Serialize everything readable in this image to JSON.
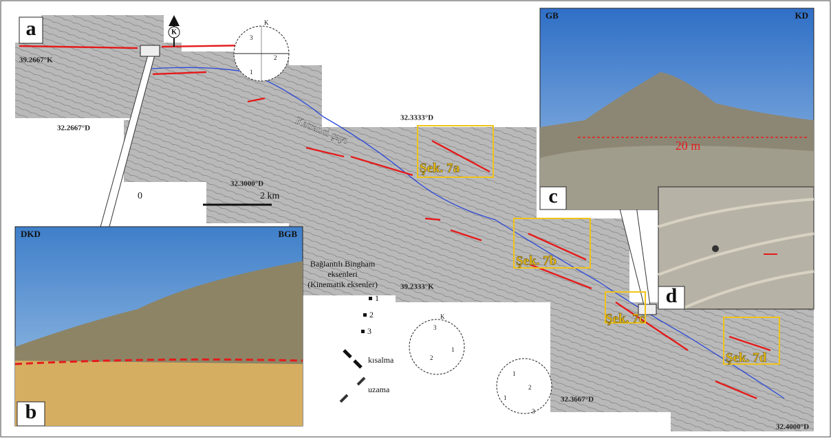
{
  "panel_labels": [
    "a",
    "b",
    "c",
    "d"
  ],
  "north_label": "K",
  "coordinates": [
    "39.2667°K",
    "32.2667°D",
    "32.3000°D",
    "32.3333°D",
    "39.2333°K",
    "32.3667°D",
    "32.4000°D"
  ],
  "scale": {
    "zero": "0",
    "length": "2 km"
  },
  "river": "Katranci çayı",
  "figure_refs": [
    "Şek. 7a",
    "Şek. 7b",
    "Şek. 7c",
    "Şek. 7d"
  ],
  "photo_b": {
    "left": "DKD",
    "right": "BGB"
  },
  "photo_c": {
    "left": "GB",
    "right": "KD",
    "measure": "20 m"
  },
  "legend": {
    "title": "Bağlantılı Bingham",
    "line2": "eksenleri",
    "line3": "(Kinematik eksenler)",
    "axes": [
      "1",
      "2",
      "3"
    ],
    "shortening": "kısalma",
    "extension": "uzama"
  },
  "stereonets": [
    [
      "K",
      "3",
      "2",
      "1"
    ],
    [
      "K",
      "3",
      "1",
      "2"
    ],
    [
      "1",
      "1",
      "2",
      "3"
    ]
  ]
}
